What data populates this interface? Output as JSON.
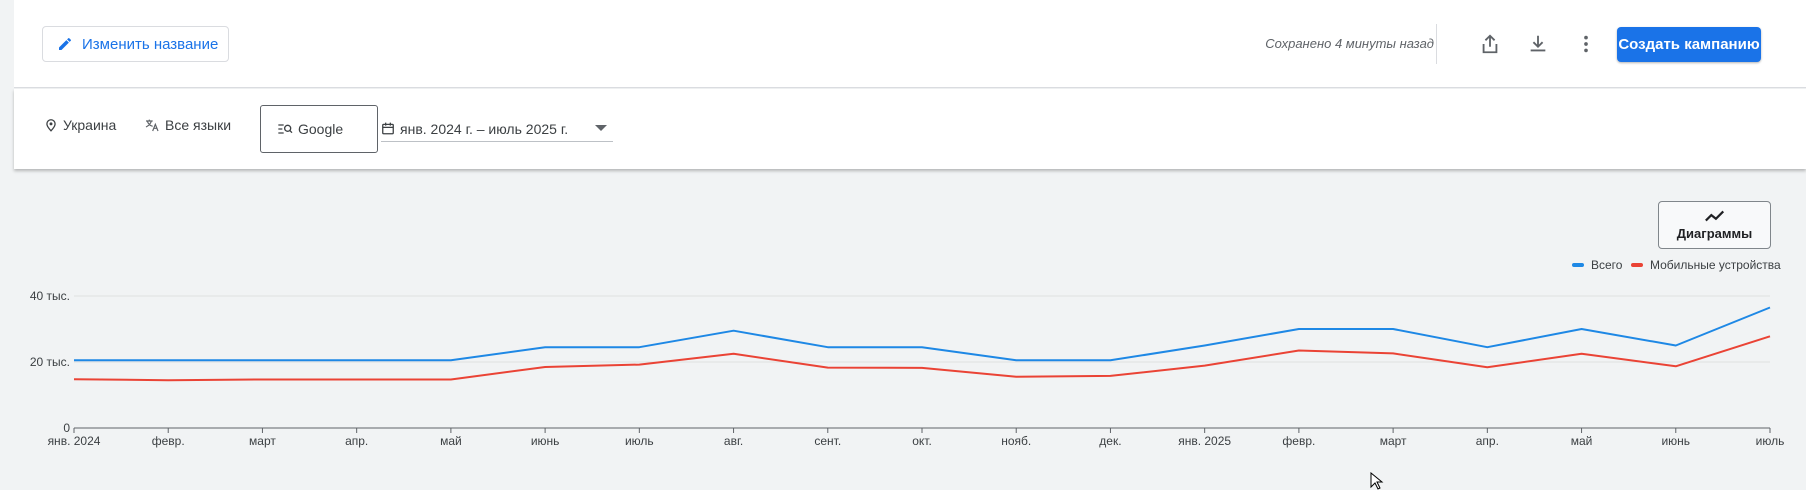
{
  "toolbar": {
    "rename_label": "Изменить название",
    "saved_status": "Сохранено 4 минуты назад",
    "share_icon": "share-icon",
    "download_icon": "download-icon",
    "more_icon": "more-vert-icon",
    "create_campaign_label": "Создать кампанию"
  },
  "filters": {
    "location": "Украина",
    "language": "Все языки",
    "network": "Google",
    "date_range": "янв. 2024 г. – июль 2025 г."
  },
  "charts_button": {
    "label": "Диаграммы",
    "icon": "trend-line-icon"
  },
  "colors": {
    "accent": "#1a73e8",
    "series_total": "#1e88e5",
    "series_mobile": "#ea4335"
  },
  "chart_data": {
    "type": "line",
    "title": "",
    "xlabel": "",
    "ylabel": "",
    "ylim": [
      0,
      40000
    ],
    "y_ticks": [
      {
        "value": 0,
        "label": "0"
      },
      {
        "value": 20000,
        "label": "20 тыс."
      },
      {
        "value": 40000,
        "label": "40 тыс."
      }
    ],
    "categories": [
      "янв. 2024",
      "февр.",
      "март",
      "апр.",
      "май",
      "июнь",
      "июль",
      "авг.",
      "сент.",
      "окт.",
      "нояб.",
      "дек.",
      "янв. 2025",
      "февр.",
      "март",
      "апр.",
      "май",
      "июнь",
      "июль"
    ],
    "series": [
      {
        "name": "Всего",
        "color": "#1e88e5",
        "values": [
          20500,
          20500,
          20500,
          20500,
          20500,
          24500,
          24500,
          29500,
          24500,
          24500,
          20500,
          20500,
          25000,
          30000,
          30000,
          24500,
          30000,
          25000,
          36500
        ]
      },
      {
        "name": "Мобильные устройства",
        "color": "#ea4335",
        "values": [
          14800,
          14500,
          14700,
          14700,
          14700,
          18500,
          19200,
          22500,
          18300,
          18200,
          15500,
          15800,
          18900,
          23500,
          22600,
          18400,
          22500,
          18700,
          27800
        ]
      }
    ],
    "grid": true,
    "legend_position": "top-right"
  }
}
